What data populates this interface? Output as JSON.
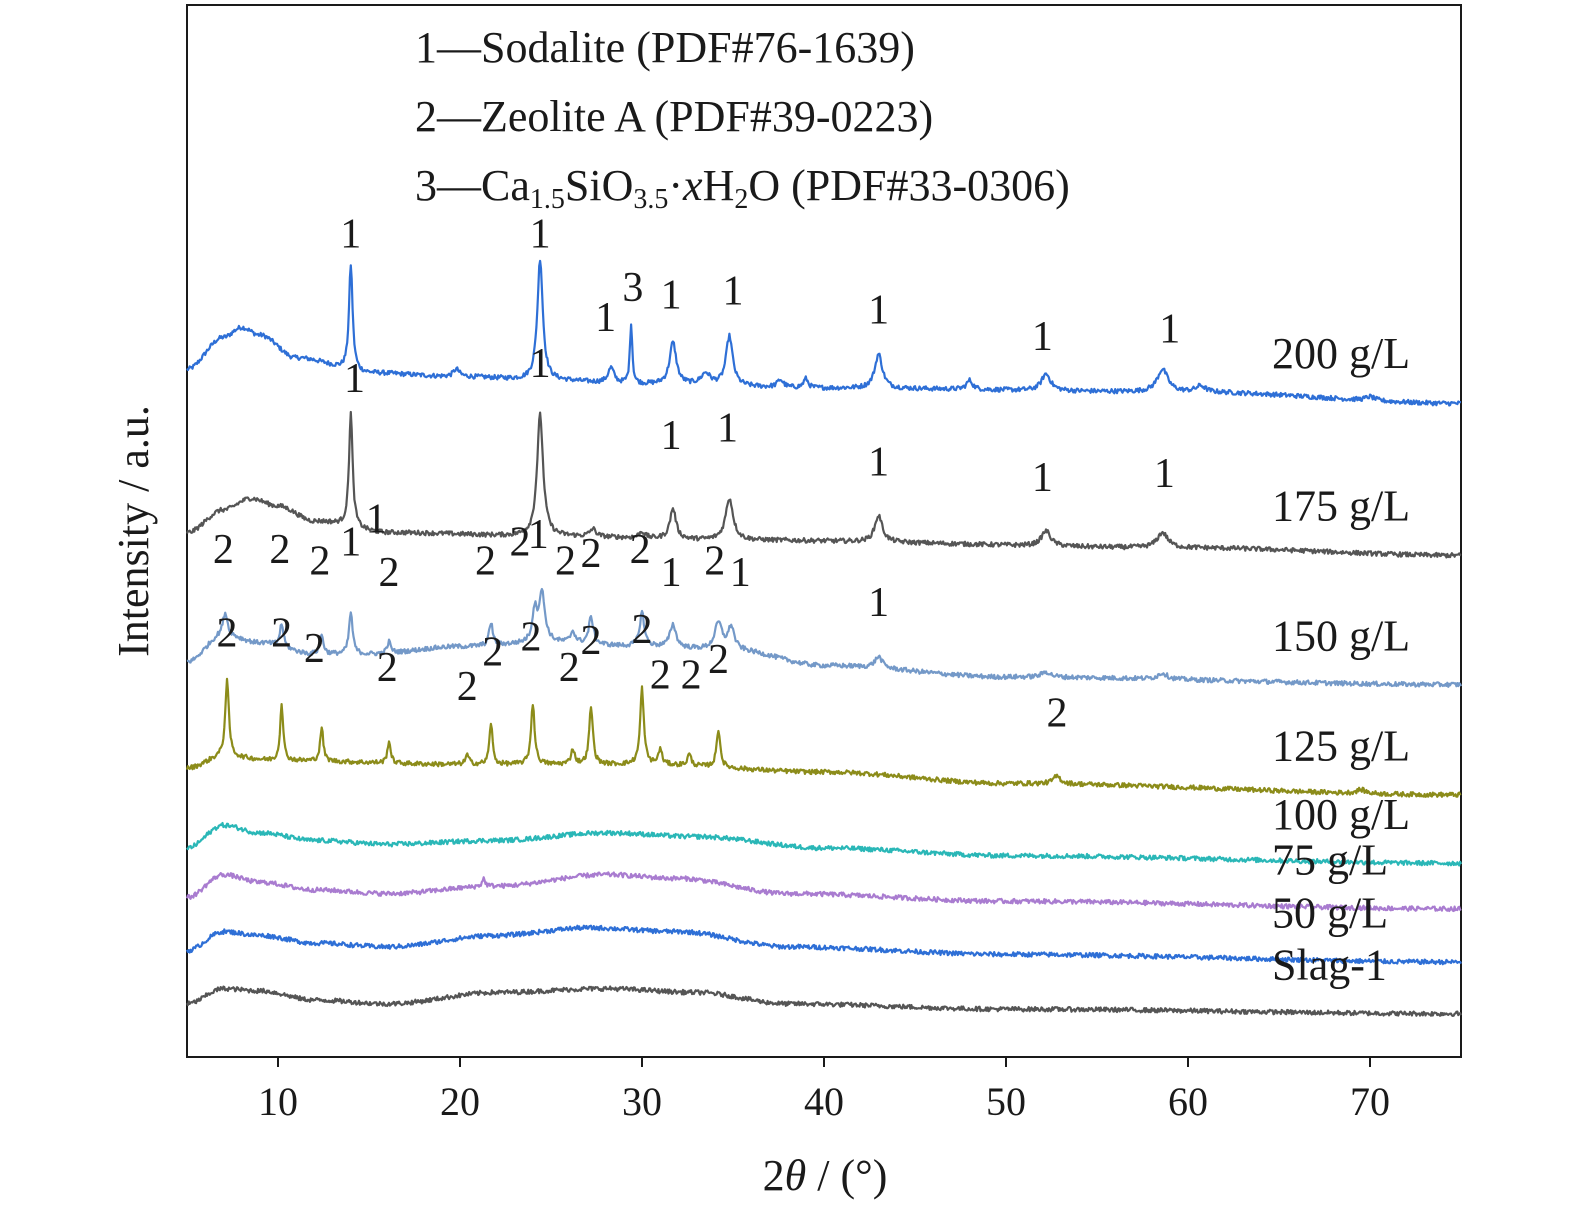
{
  "chart_data": {
    "type": "line",
    "xlabel_parts": {
      "pre": "2",
      "theta": "θ",
      "post": " / (°)"
    },
    "ylabel": "Intensity / a.u.",
    "xlim": [
      5,
      75
    ],
    "xticks": [
      10,
      20,
      30,
      40,
      50,
      60,
      70
    ],
    "grid": false,
    "legend": {
      "placement": "top-center",
      "entries": [
        {
          "text": "1—Sodalite (PDF#76-1639)"
        },
        {
          "text": "2—Zeolite A (PDF#39-0223)"
        },
        {
          "parts": [
            {
              "t": "3—Ca"
            },
            {
              "t": "1.5",
              "sub": true
            },
            {
              "t": "SiO"
            },
            {
              "t": "3.5",
              "sub": true
            },
            {
              "t": "·"
            },
            {
              "t": "x",
              "italic": true
            },
            {
              "t": "H"
            },
            {
              "t": "2",
              "sub": true
            },
            {
              "t": "O (PDF#33-0306)"
            }
          ]
        }
      ]
    },
    "series": [
      {
        "name": "200 g/L",
        "color": "#2e6fd6",
        "offset": 8,
        "baseline": [
          [
            5,
            0.3
          ],
          [
            7,
            0.72
          ],
          [
            8,
            0.85
          ],
          [
            9,
            0.75
          ],
          [
            11,
            0.45
          ],
          [
            15,
            0.25
          ],
          [
            20,
            0.2
          ],
          [
            25,
            0.15
          ],
          [
            30,
            0.1
          ],
          [
            40,
            0.05
          ],
          [
            60,
            0.0
          ],
          [
            75,
            -0.15
          ]
        ],
        "peaks": [
          [
            14.0,
            1.4,
            0.12
          ],
          [
            19.8,
            0.1,
            0.2
          ],
          [
            24.4,
            1.6,
            0.18
          ],
          [
            28.3,
            0.2,
            0.2
          ],
          [
            29.4,
            0.8,
            0.08
          ],
          [
            31.7,
            0.55,
            0.22
          ],
          [
            33.5,
            0.15,
            0.3
          ],
          [
            34.8,
            0.65,
            0.22
          ],
          [
            37.6,
            0.1,
            0.2
          ],
          [
            39.0,
            0.12,
            0.15
          ],
          [
            43.0,
            0.45,
            0.25
          ],
          [
            48.0,
            0.12,
            0.2
          ],
          [
            52.2,
            0.22,
            0.3
          ],
          [
            58.6,
            0.3,
            0.35
          ],
          [
            60.7,
            0.08,
            0.3
          ],
          [
            70.0,
            0.05,
            0.3
          ]
        ],
        "labels": [
          {
            "x": 14.0,
            "y": 9.9,
            "text": "1"
          },
          {
            "x": 24.4,
            "y": 9.9,
            "text": "1"
          },
          {
            "x": 28.0,
            "y": 8.8,
            "text": "1"
          },
          {
            "x": 29.5,
            "y": 9.2,
            "text": "3"
          },
          {
            "x": 31.6,
            "y": 9.1,
            "text": "1"
          },
          {
            "x": 35.0,
            "y": 9.15,
            "text": "1"
          },
          {
            "x": 43.0,
            "y": 8.9,
            "text": "1"
          },
          {
            "x": 52.0,
            "y": 8.55,
            "text": "1"
          },
          {
            "x": 59.0,
            "y": 8.65,
            "text": "1"
          }
        ]
      },
      {
        "name": "175 g/L",
        "color": "#555555",
        "offset": 6,
        "baseline": [
          [
            5,
            0.15
          ],
          [
            7,
            0.45
          ],
          [
            8.5,
            0.6
          ],
          [
            10,
            0.5
          ],
          [
            12,
            0.3
          ],
          [
            16,
            0.15
          ],
          [
            25,
            0.1
          ],
          [
            35,
            0.05
          ],
          [
            60,
            -0.05
          ],
          [
            75,
            -0.15
          ]
        ],
        "peaks": [
          [
            14.0,
            1.5,
            0.12
          ],
          [
            24.4,
            1.6,
            0.2
          ],
          [
            27.3,
            0.1,
            0.2
          ],
          [
            30.0,
            0.08,
            0.2
          ],
          [
            31.7,
            0.4,
            0.2
          ],
          [
            34.8,
            0.55,
            0.25
          ],
          [
            43.0,
            0.35,
            0.25
          ],
          [
            52.2,
            0.2,
            0.3
          ],
          [
            58.6,
            0.2,
            0.35
          ]
        ],
        "labels": [
          {
            "x": 14.2,
            "y": 8.0,
            "text": "1"
          },
          {
            "x": 24.4,
            "y": 8.2,
            "text": "1"
          },
          {
            "x": 31.6,
            "y": 7.25,
            "text": "1"
          },
          {
            "x": 34.7,
            "y": 7.35,
            "text": "1"
          },
          {
            "x": 43.0,
            "y": 6.9,
            "text": "1"
          },
          {
            "x": 52.0,
            "y": 6.7,
            "text": "1"
          },
          {
            "x": 58.7,
            "y": 6.75,
            "text": "1"
          }
        ]
      },
      {
        "name": "150 g/L",
        "color": "#7499c8",
        "offset": 4.35,
        "baseline": [
          [
            5,
            0.1
          ],
          [
            7,
            0.45
          ],
          [
            9,
            0.35
          ],
          [
            12,
            0.2
          ],
          [
            15,
            0.2
          ],
          [
            20,
            0.3
          ],
          [
            25,
            0.35
          ],
          [
            30,
            0.3
          ],
          [
            35,
            0.25
          ],
          [
            40,
            0.05
          ],
          [
            50,
            -0.1
          ],
          [
            75,
            -0.2
          ]
        ],
        "peaks": [
          [
            7.1,
            0.3,
            0.15
          ],
          [
            10.2,
            0.3,
            0.12
          ],
          [
            12.4,
            0.25,
            0.12
          ],
          [
            14.0,
            0.55,
            0.12
          ],
          [
            16.1,
            0.15,
            0.12
          ],
          [
            21.7,
            0.3,
            0.12
          ],
          [
            24.1,
            0.4,
            0.15
          ],
          [
            24.5,
            0.65,
            0.2
          ],
          [
            26.2,
            0.15,
            0.15
          ],
          [
            27.2,
            0.35,
            0.15
          ],
          [
            30.0,
            0.45,
            0.15
          ],
          [
            31.7,
            0.3,
            0.2
          ],
          [
            34.2,
            0.35,
            0.25
          ],
          [
            34.9,
            0.3,
            0.2
          ],
          [
            43.0,
            0.15,
            0.25
          ],
          [
            52.2,
            0.07,
            0.3
          ],
          [
            58.6,
            0.08,
            0.3
          ]
        ],
        "labels": [
          {
            "x": 7.0,
            "y": 5.75,
            "text": "2"
          },
          {
            "x": 10.1,
            "y": 5.75,
            "text": "2"
          },
          {
            "x": 12.3,
            "y": 5.6,
            "text": "2"
          },
          {
            "x": 14.0,
            "y": 5.85,
            "text": "1"
          },
          {
            "x": 15.4,
            "y": 6.15,
            "text": "1"
          },
          {
            "x": 16.1,
            "y": 5.45,
            "text": "2"
          },
          {
            "x": 21.4,
            "y": 5.6,
            "text": "2"
          },
          {
            "x": 23.3,
            "y": 5.85,
            "text": "2"
          },
          {
            "x": 24.3,
            "y": 5.95,
            "text": "1"
          },
          {
            "x": 25.8,
            "y": 5.6,
            "text": "2"
          },
          {
            "x": 27.2,
            "y": 5.7,
            "text": "2"
          },
          {
            "x": 29.9,
            "y": 5.75,
            "text": "2"
          },
          {
            "x": 31.6,
            "y": 5.45,
            "text": "1"
          },
          {
            "x": 34.0,
            "y": 5.6,
            "text": "2"
          },
          {
            "x": 35.4,
            "y": 5.45,
            "text": "1"
          },
          {
            "x": 43.0,
            "y": 5.05,
            "text": "1"
          }
        ]
      },
      {
        "name": "125 g/L",
        "color": "#8c8c1a",
        "offset": 3,
        "baseline": [
          [
            5,
            0.05
          ],
          [
            7,
            0.2
          ],
          [
            10,
            0.15
          ],
          [
            20,
            0.1
          ],
          [
            30,
            0.1
          ],
          [
            40,
            0.0
          ],
          [
            50,
            -0.15
          ],
          [
            75,
            -0.3
          ]
        ],
        "peaks": [
          [
            7.2,
            1.0,
            0.12
          ],
          [
            10.2,
            0.75,
            0.1
          ],
          [
            12.4,
            0.45,
            0.1
          ],
          [
            16.1,
            0.3,
            0.1
          ],
          [
            20.4,
            0.12,
            0.12
          ],
          [
            21.7,
            0.55,
            0.1
          ],
          [
            24.0,
            0.8,
            0.12
          ],
          [
            26.2,
            0.2,
            0.12
          ],
          [
            27.2,
            0.75,
            0.12
          ],
          [
            30.0,
            1.0,
            0.12
          ],
          [
            31.0,
            0.2,
            0.12
          ],
          [
            32.6,
            0.15,
            0.12
          ],
          [
            34.2,
            0.5,
            0.12
          ],
          [
            52.8,
            0.1,
            0.25
          ],
          [
            69.5,
            0.05,
            0.3
          ]
        ],
        "labels": [
          {
            "x": 7.2,
            "y": 4.65,
            "text": "2"
          },
          {
            "x": 10.2,
            "y": 4.65,
            "text": "2"
          },
          {
            "x": 12.0,
            "y": 4.45,
            "text": "2"
          },
          {
            "x": 16.0,
            "y": 4.2,
            "text": "2"
          },
          {
            "x": 20.4,
            "y": 3.95,
            "text": "2"
          },
          {
            "x": 21.8,
            "y": 4.4,
            "text": "2"
          },
          {
            "x": 23.9,
            "y": 4.6,
            "text": "2"
          },
          {
            "x": 26.0,
            "y": 4.2,
            "text": "2"
          },
          {
            "x": 27.2,
            "y": 4.55,
            "text": "2"
          },
          {
            "x": 30.0,
            "y": 4.7,
            "text": "2"
          },
          {
            "x": 31.0,
            "y": 4.1,
            "text": "2"
          },
          {
            "x": 32.7,
            "y": 4.1,
            "text": "2"
          },
          {
            "x": 34.2,
            "y": 4.3,
            "text": "2"
          },
          {
            "x": 52.8,
            "y": 3.6,
            "text": "2"
          }
        ]
      },
      {
        "name": "100 g/L",
        "color": "#2ab7b7",
        "offset": 2,
        "baseline": [
          [
            5,
            0.0
          ],
          [
            7,
            0.3
          ],
          [
            9,
            0.2
          ],
          [
            12,
            0.1
          ],
          [
            16,
            0.05
          ],
          [
            22,
            0.1
          ],
          [
            28,
            0.2
          ],
          [
            33,
            0.15
          ],
          [
            40,
            0.0
          ],
          [
            50,
            -0.1
          ],
          [
            75,
            -0.2
          ]
        ],
        "peaks": [],
        "labels": []
      },
      {
        "name": "75 g/L",
        "color": "#a97cd0",
        "offset": 1.35,
        "baseline": [
          [
            5,
            0.0
          ],
          [
            7,
            0.3
          ],
          [
            9,
            0.2
          ],
          [
            12,
            0.1
          ],
          [
            16,
            0.05
          ],
          [
            22,
            0.15
          ],
          [
            28,
            0.3
          ],
          [
            32,
            0.25
          ],
          [
            38,
            0.05
          ],
          [
            50,
            -0.05
          ],
          [
            75,
            -0.15
          ]
        ],
        "peaks": [
          [
            21.3,
            0.1,
            0.1
          ]
        ],
        "labels": []
      },
      {
        "name": "50 g/L",
        "color": "#2e6fd6",
        "offset": 0.7,
        "baseline": [
          [
            5,
            -0.05
          ],
          [
            7,
            0.2
          ],
          [
            9,
            0.15
          ],
          [
            12,
            0.05
          ],
          [
            16,
            0.0
          ],
          [
            22,
            0.15
          ],
          [
            27,
            0.25
          ],
          [
            32,
            0.2
          ],
          [
            38,
            0.0
          ],
          [
            50,
            -0.1
          ],
          [
            75,
            -0.2
          ]
        ],
        "peaks": [],
        "labels": []
      },
      {
        "name": "Slag-1",
        "color": "#555555",
        "offset": 0,
        "baseline": [
          [
            5,
            -0.05
          ],
          [
            7,
            0.15
          ],
          [
            9,
            0.12
          ],
          [
            12,
            0.0
          ],
          [
            16,
            -0.05
          ],
          [
            22,
            0.1
          ],
          [
            28,
            0.15
          ],
          [
            33,
            0.1
          ],
          [
            38,
            -0.05
          ],
          [
            50,
            -0.12
          ],
          [
            75,
            -0.18
          ]
        ],
        "peaks": [],
        "labels": []
      }
    ]
  }
}
